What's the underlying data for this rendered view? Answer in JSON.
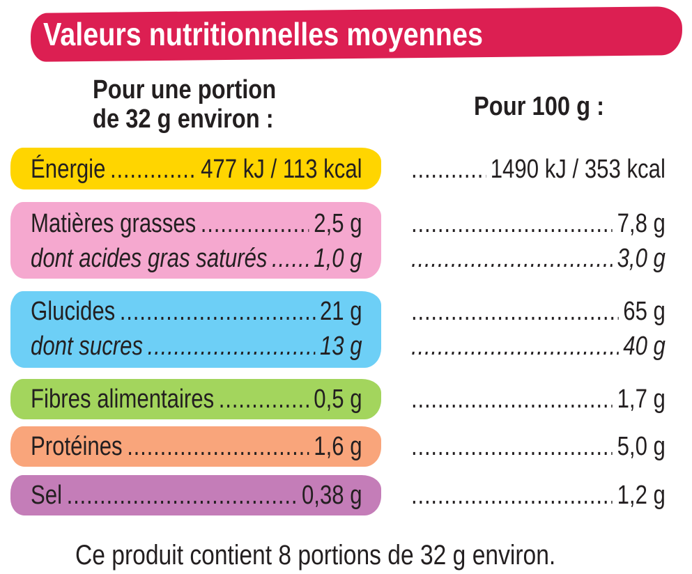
{
  "title": "Valeurs nutritionnelles moyennes",
  "headers": {
    "portion_line1": "Pour une portion",
    "portion_line2": "de 32 g environ :",
    "per100": "Pour 100 g :"
  },
  "rows": [
    {
      "label": "Énergie",
      "portion": "477 kJ / 113 kcal",
      "per100": "1490 kJ / 353 kcal",
      "italic": false
    },
    {
      "label": "Matières grasses",
      "portion": "2,5 g",
      "per100": "7,8 g",
      "italic": false
    },
    {
      "label": "dont acides gras saturés",
      "portion": "1,0 g",
      "per100": "3,0 g",
      "italic": true
    },
    {
      "label": "Glucides",
      "portion": "21 g",
      "per100": "65 g",
      "italic": false
    },
    {
      "label": "dont sucres",
      "portion": "13 g",
      "per100": "40 g",
      "italic": true
    },
    {
      "label": "Fibres alimentaires",
      "portion": "0,5 g",
      "per100": "1,7 g",
      "italic": false
    },
    {
      "label": "Protéines",
      "portion": "1,6 g",
      "per100": "5,0 g",
      "italic": false
    },
    {
      "label": "Sel",
      "portion": "0,38 g",
      "per100": "1,2 g",
      "italic": false
    }
  ],
  "footer": "Ce produit contient 8 portions de 32 g environ.",
  "colors": {
    "title_banner": "#dc1f52",
    "energie": "#ffd500",
    "matieres_grasses": "#f5a8cf",
    "glucides": "#6dcff6",
    "fibres": "#a3d55d",
    "proteines": "#f9a57b",
    "sel": "#c47db8"
  }
}
